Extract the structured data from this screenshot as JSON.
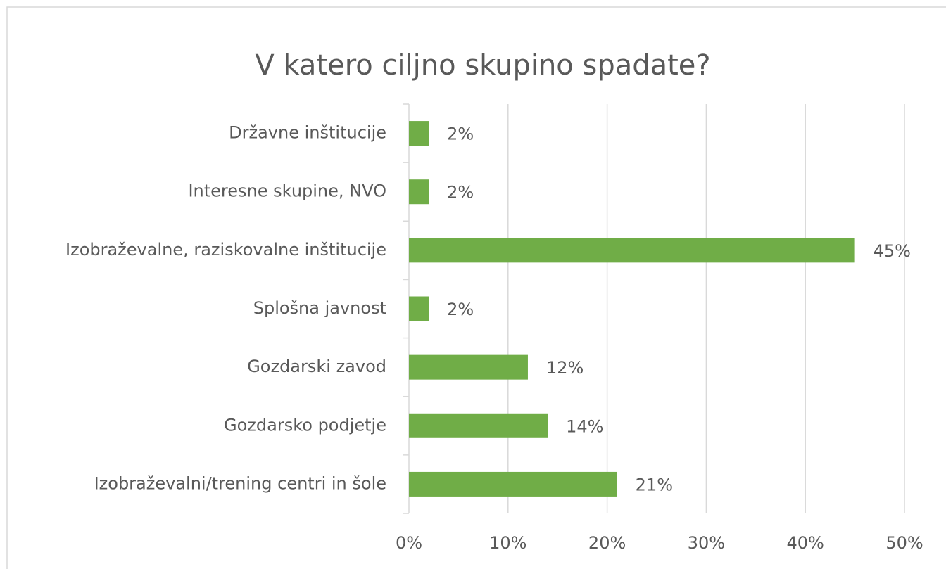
{
  "chart_data": {
    "type": "bar",
    "orientation": "horizontal",
    "title": "V katero ciljno skupino spadate?",
    "categories": [
      "Državne inštitucije",
      "Interesne skupine, NVO",
      "Izobraževalne, raziskovalne inštitucije",
      "Splošna javnost",
      "Gozdarski zavod",
      "Gozdarsko podjetje",
      "Izobraževalni/trening centri in šole"
    ],
    "values": [
      2,
      2,
      45,
      2,
      12,
      14,
      21
    ],
    "value_labels": [
      "2%",
      "2%",
      "45%",
      "2%",
      "12%",
      "14%",
      "21%"
    ],
    "color": "#70ad47",
    "xlim": [
      0,
      50
    ],
    "xticks": [
      {
        "value": 0,
        "label": "0%"
      },
      {
        "value": 10,
        "label": "10%"
      },
      {
        "value": 20,
        "label": "20%"
      },
      {
        "value": 30,
        "label": "30%"
      },
      {
        "value": 40,
        "label": "40%"
      },
      {
        "value": 50,
        "label": "50%"
      }
    ],
    "grid": true
  }
}
